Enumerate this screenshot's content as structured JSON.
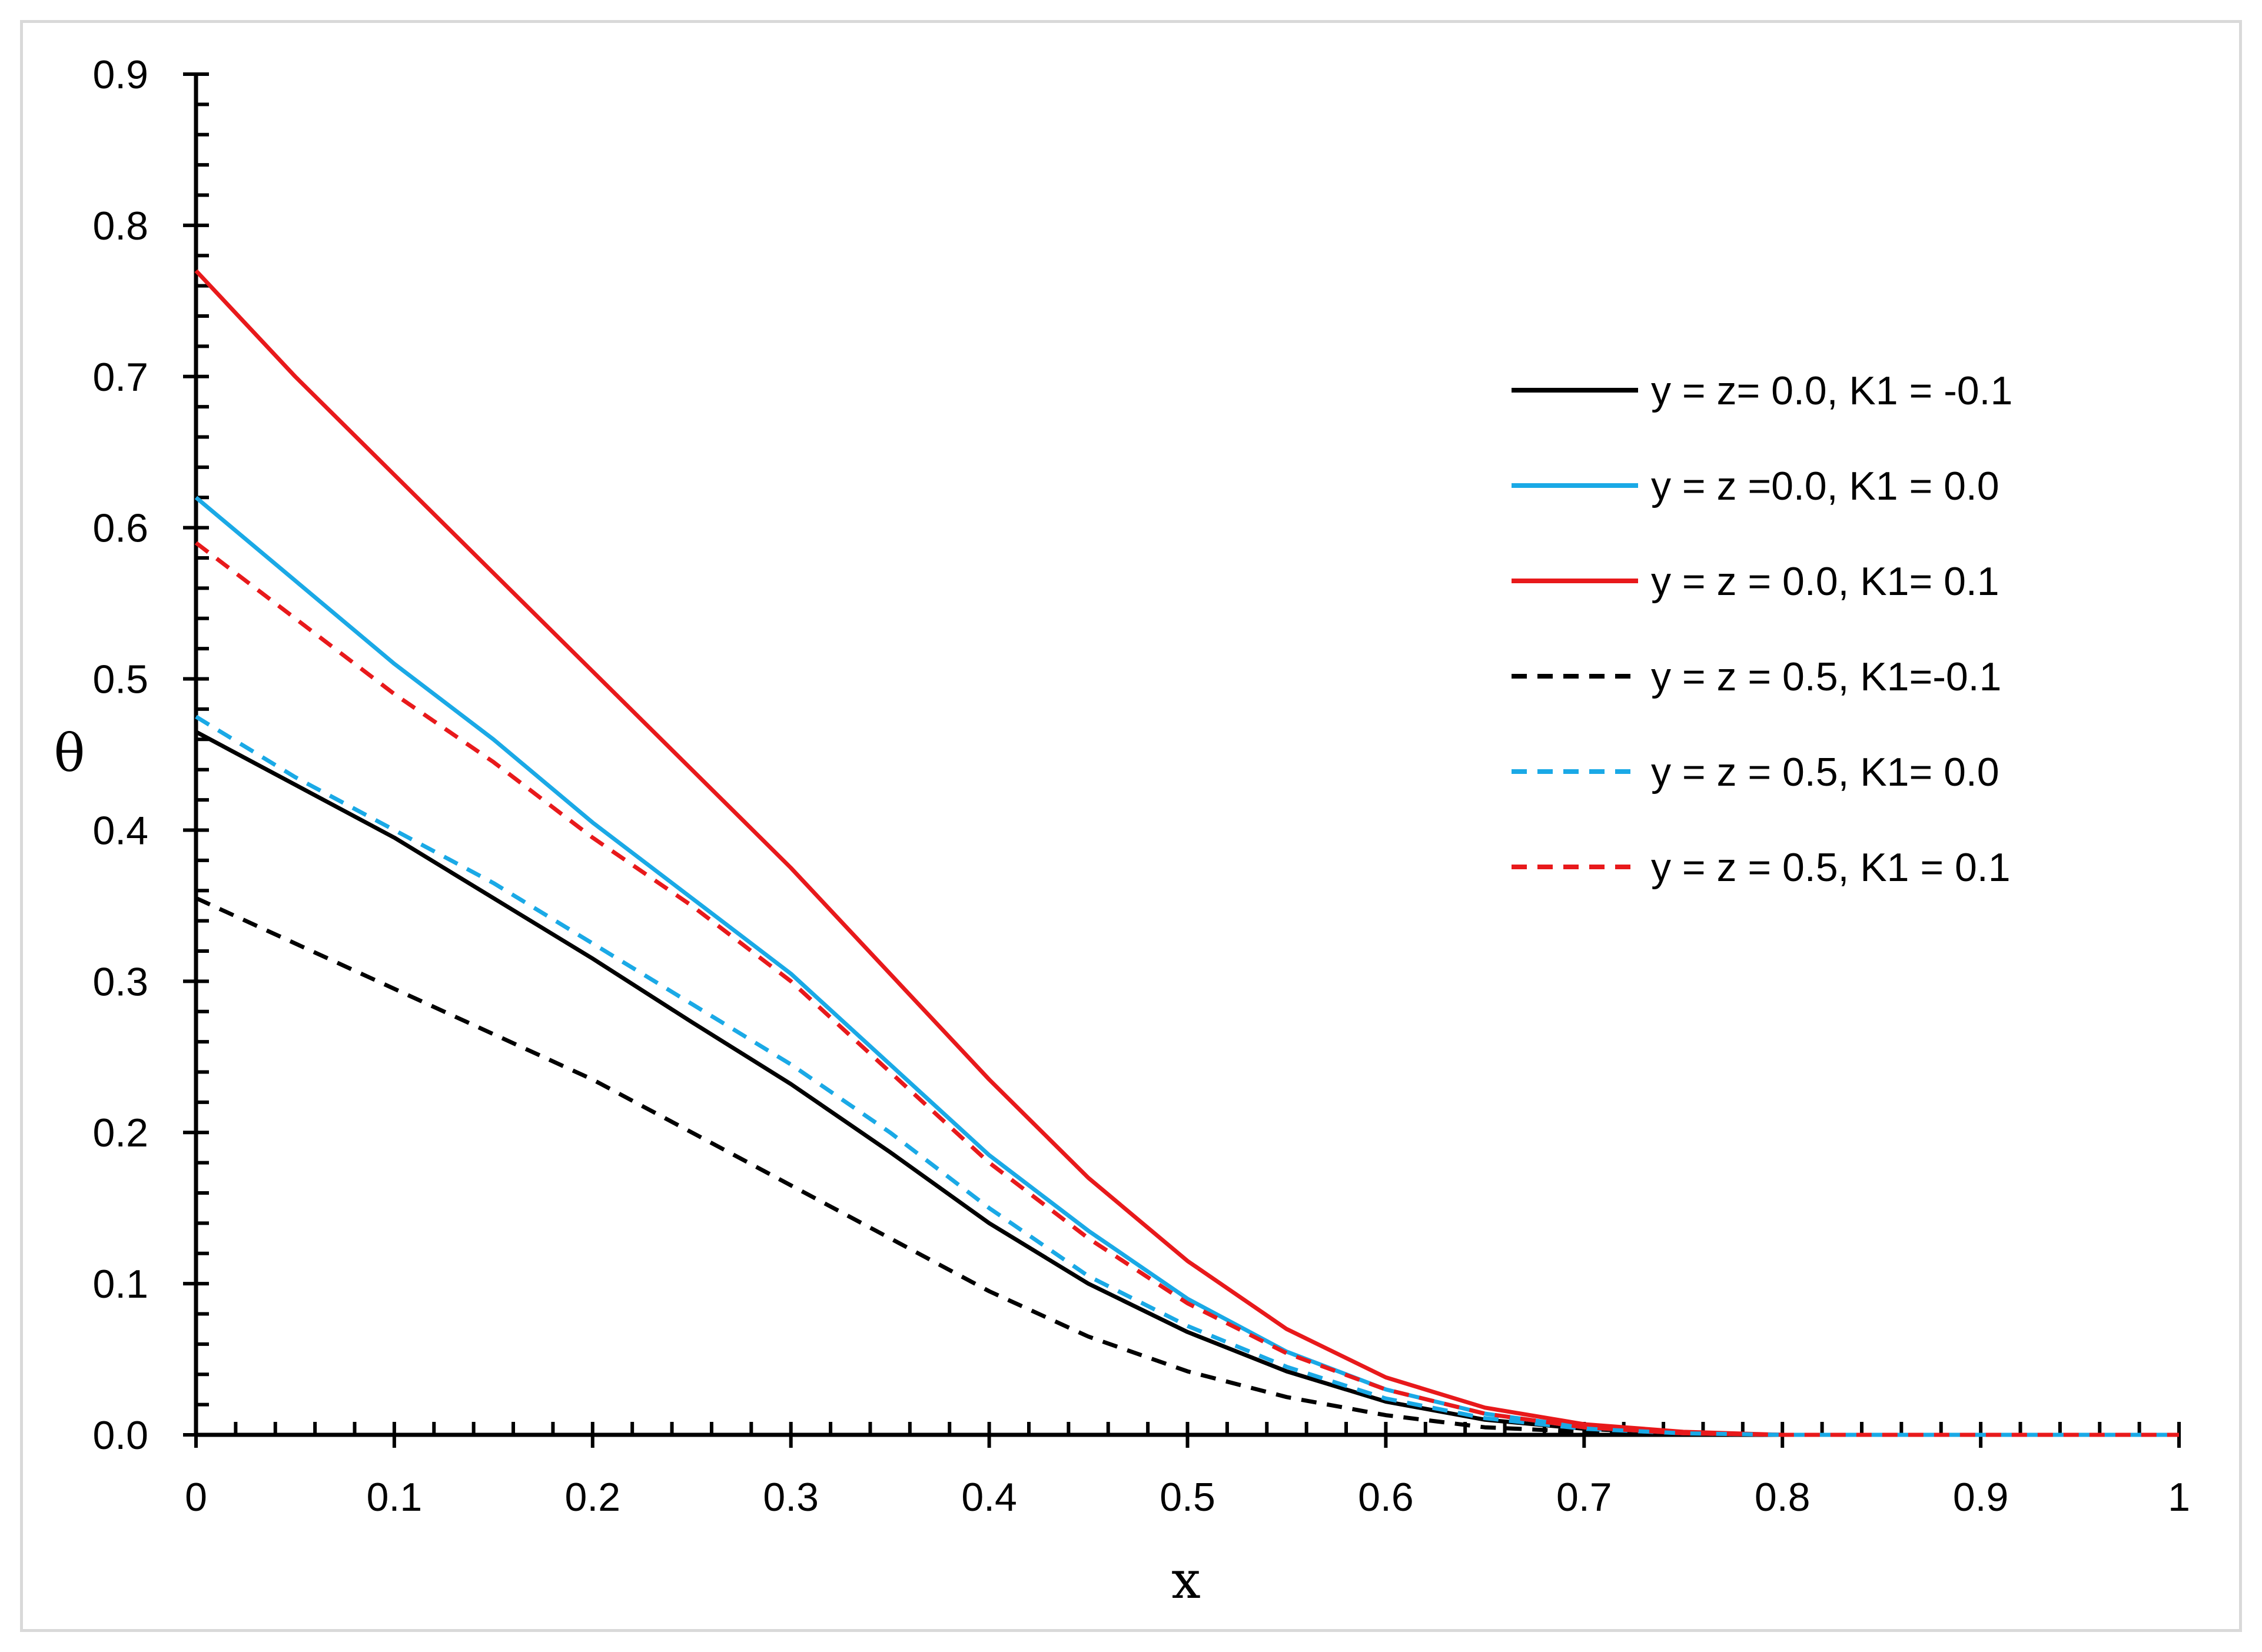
{
  "chart_data": {
    "type": "line",
    "title": "",
    "xlabel": "x",
    "ylabel": "θ",
    "xlim": [
      0,
      1
    ],
    "ylim": [
      0,
      0.9
    ],
    "x_ticks": [
      "0",
      "0.1",
      "0.2",
      "0.3",
      "0.4",
      "0.5",
      "0.6",
      "0.7",
      "0.8",
      "0.9",
      "1"
    ],
    "y_ticks": [
      "0.0",
      "0.1",
      "0.2",
      "0.3",
      "0.4",
      "0.5",
      "0.6",
      "0.7",
      "0.8",
      "0.9"
    ],
    "legend_position": "right",
    "x": [
      0,
      0.05,
      0.1,
      0.15,
      0.2,
      0.25,
      0.3,
      0.35,
      0.4,
      0.45,
      0.5,
      0.55,
      0.6,
      0.65,
      0.7,
      0.75,
      0.8,
      0.85,
      0.9,
      0.95,
      1.0
    ],
    "series": [
      {
        "name": "y = z= 0.0, K1 = -0.1",
        "color": "#000000",
        "dash": "solid",
        "values": [
          0.465,
          0.43,
          0.395,
          0.355,
          0.315,
          0.273,
          0.232,
          0.187,
          0.14,
          0.1,
          0.068,
          0.042,
          0.022,
          0.01,
          0.004,
          0.001,
          0.0,
          0.0,
          0.0,
          0.0,
          0.0
        ]
      },
      {
        "name": "y = z =0.0, K1 = 0.0",
        "color": "#1aa9e6",
        "dash": "solid",
        "values": [
          0.62,
          0.565,
          0.51,
          0.46,
          0.405,
          0.355,
          0.305,
          0.245,
          0.185,
          0.135,
          0.09,
          0.055,
          0.03,
          0.014,
          0.005,
          0.001,
          0.0,
          0.0,
          0.0,
          0.0,
          0.0
        ]
      },
      {
        "name": "y = z = 0.0, K1= 0.1",
        "color": "#e8191b",
        "dash": "solid",
        "values": [
          0.77,
          0.7,
          0.635,
          0.57,
          0.505,
          0.44,
          0.375,
          0.305,
          0.235,
          0.17,
          0.115,
          0.07,
          0.038,
          0.018,
          0.007,
          0.002,
          0.0,
          0.0,
          0.0,
          0.0,
          0.0
        ]
      },
      {
        "name": "y = z = 0.5, K1=-0.1",
        "color": "#000000",
        "dash": "dashed",
        "values": [
          0.355,
          0.325,
          0.295,
          0.265,
          0.235,
          0.2,
          0.165,
          0.13,
          0.095,
          0.065,
          0.042,
          0.025,
          0.013,
          0.005,
          0.002,
          0.0,
          0.0,
          0.0,
          0.0,
          0.0,
          0.0
        ]
      },
      {
        "name": "y = z = 0.5, K1= 0.0",
        "color": "#1aa9e6",
        "dash": "dashed",
        "values": [
          0.475,
          0.435,
          0.4,
          0.365,
          0.325,
          0.285,
          0.245,
          0.2,
          0.15,
          0.105,
          0.072,
          0.045,
          0.024,
          0.011,
          0.004,
          0.001,
          0.0,
          0.0,
          0.0,
          0.0,
          0.0
        ]
      },
      {
        "name": "y = z = 0.5, K1 = 0.1",
        "color": "#e8191b",
        "dash": "dashed",
        "values": [
          0.59,
          0.54,
          0.49,
          0.445,
          0.395,
          0.35,
          0.3,
          0.24,
          0.18,
          0.13,
          0.087,
          0.054,
          0.03,
          0.014,
          0.005,
          0.001,
          0.0,
          0.0,
          0.0,
          0.0,
          0.0
        ]
      }
    ]
  }
}
